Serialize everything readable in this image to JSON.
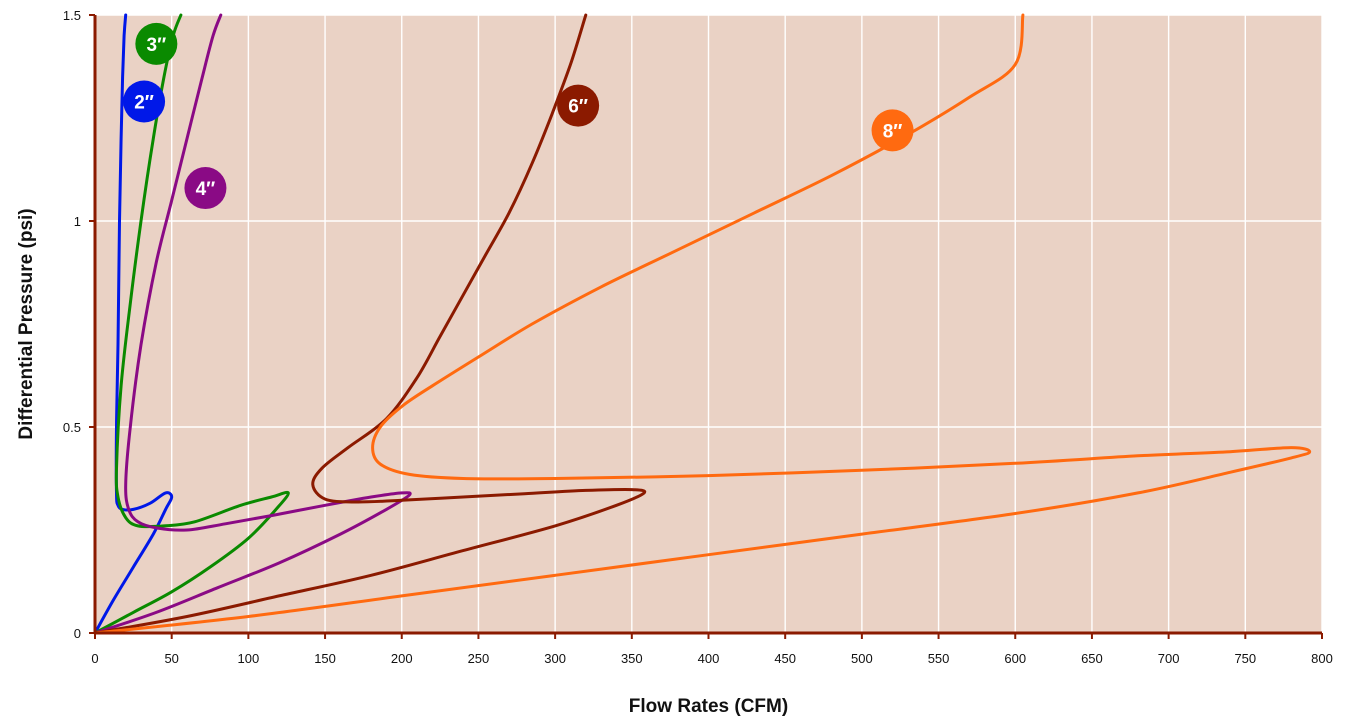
{
  "chart_data": {
    "type": "line",
    "title": "",
    "xlabel": "Flow Rates (CFM)",
    "ylabel": "Differential Pressure (psi)",
    "xlim": [
      0,
      800
    ],
    "ylim": [
      0,
      1.5
    ],
    "x_ticks": [
      "0",
      "50",
      "100",
      "150",
      "200",
      "250",
      "300",
      "350",
      "400",
      "450",
      "500",
      "550",
      "600",
      "650",
      "700",
      "750",
      "800"
    ],
    "y_ticks": [
      "0",
      "0.5",
      "1",
      "1.5"
    ],
    "x_tick_values": [
      0,
      50,
      100,
      150,
      200,
      250,
      300,
      350,
      400,
      450,
      500,
      550,
      600,
      650,
      700,
      750,
      800
    ],
    "y_tick_values": [
      0,
      0.5,
      1,
      1.5
    ],
    "grid": true,
    "background": "#ead2c5",
    "axis_color": "#8b1a00",
    "series": [
      {
        "name": "2″",
        "color": "#0018e8",
        "label_pos": [
          32,
          1.29
        ],
        "points": [
          [
            0,
            0
          ],
          [
            12,
            0.08
          ],
          [
            25,
            0.16
          ],
          [
            38,
            0.24
          ],
          [
            46,
            0.3
          ],
          [
            50,
            0.33
          ],
          [
            46,
            0.34
          ],
          [
            36,
            0.315
          ],
          [
            25,
            0.3
          ],
          [
            18,
            0.3
          ],
          [
            15,
            0.31
          ],
          [
            14,
            0.34
          ],
          [
            14,
            0.5
          ],
          [
            15,
            0.7
          ],
          [
            16,
            1.0
          ],
          [
            17,
            1.2
          ],
          [
            18,
            1.35
          ],
          [
            19,
            1.45
          ],
          [
            20,
            1.5
          ]
        ]
      },
      {
        "name": "3″",
        "color": "#0a8a00",
        "label_pos": [
          40,
          1.43
        ],
        "points": [
          [
            0,
            0
          ],
          [
            25,
            0.05
          ],
          [
            50,
            0.1
          ],
          [
            75,
            0.16
          ],
          [
            100,
            0.23
          ],
          [
            118,
            0.3
          ],
          [
            126,
            0.34
          ],
          [
            115,
            0.33
          ],
          [
            95,
            0.31
          ],
          [
            65,
            0.27
          ],
          [
            45,
            0.26
          ],
          [
            28,
            0.26
          ],
          [
            20,
            0.28
          ],
          [
            15,
            0.33
          ],
          [
            14,
            0.4
          ],
          [
            17,
            0.6
          ],
          [
            23,
            0.8
          ],
          [
            30,
            1.0
          ],
          [
            38,
            1.2
          ],
          [
            45,
            1.35
          ],
          [
            51,
            1.45
          ],
          [
            56,
            1.5
          ]
        ]
      },
      {
        "name": "4″",
        "color": "#8a0a85",
        "label_pos": [
          72,
          1.08
        ],
        "points": [
          [
            0,
            0
          ],
          [
            40,
            0.05
          ],
          [
            80,
            0.11
          ],
          [
            120,
            0.17
          ],
          [
            160,
            0.24
          ],
          [
            190,
            0.3
          ],
          [
            205,
            0.335
          ],
          [
            200,
            0.34
          ],
          [
            180,
            0.33
          ],
          [
            150,
            0.31
          ],
          [
            115,
            0.285
          ],
          [
            85,
            0.265
          ],
          [
            60,
            0.25
          ],
          [
            40,
            0.255
          ],
          [
            28,
            0.27
          ],
          [
            22,
            0.3
          ],
          [
            20,
            0.36
          ],
          [
            23,
            0.5
          ],
          [
            30,
            0.7
          ],
          [
            40,
            0.9
          ],
          [
            50,
            1.05
          ],
          [
            60,
            1.2
          ],
          [
            70,
            1.35
          ],
          [
            77,
            1.45
          ],
          [
            82,
            1.5
          ]
        ]
      },
      {
        "name": "6″",
        "color": "#8b1a00",
        "label_pos": [
          315,
          1.28
        ],
        "points": [
          [
            0,
            0
          ],
          [
            60,
            0.04
          ],
          [
            120,
            0.09
          ],
          [
            180,
            0.14
          ],
          [
            240,
            0.2
          ],
          [
            300,
            0.26
          ],
          [
            340,
            0.31
          ],
          [
            358,
            0.34
          ],
          [
            350,
            0.348
          ],
          [
            320,
            0.346
          ],
          [
            280,
            0.338
          ],
          [
            240,
            0.33
          ],
          [
            200,
            0.322
          ],
          [
            170,
            0.318
          ],
          [
            150,
            0.325
          ],
          [
            142,
            0.36
          ],
          [
            148,
            0.4
          ],
          [
            165,
            0.45
          ],
          [
            190,
            0.52
          ],
          [
            210,
            0.62
          ],
          [
            225,
            0.72
          ],
          [
            240,
            0.82
          ],
          [
            255,
            0.92
          ],
          [
            270,
            1.02
          ],
          [
            285,
            1.14
          ],
          [
            298,
            1.26
          ],
          [
            310,
            1.38
          ],
          [
            320,
            1.5
          ]
        ]
      },
      {
        "name": "8″",
        "color": "#ff6a10",
        "label_pos": [
          520,
          1.22
        ],
        "points": [
          [
            0,
            0
          ],
          [
            100,
            0.04
          ],
          [
            200,
            0.09
          ],
          [
            300,
            0.14
          ],
          [
            400,
            0.19
          ],
          [
            500,
            0.24
          ],
          [
            600,
            0.29
          ],
          [
            680,
            0.34
          ],
          [
            740,
            0.39
          ],
          [
            780,
            0.425
          ],
          [
            792,
            0.44
          ],
          [
            780,
            0.45
          ],
          [
            740,
            0.44
          ],
          [
            680,
            0.43
          ],
          [
            600,
            0.412
          ],
          [
            500,
            0.395
          ],
          [
            400,
            0.382
          ],
          [
            300,
            0.375
          ],
          [
            240,
            0.375
          ],
          [
            205,
            0.385
          ],
          [
            186,
            0.41
          ],
          [
            181,
            0.45
          ],
          [
            186,
            0.5
          ],
          [
            200,
            0.55
          ],
          [
            220,
            0.6
          ],
          [
            250,
            0.67
          ],
          [
            285,
            0.75
          ],
          [
            330,
            0.84
          ],
          [
            380,
            0.93
          ],
          [
            430,
            1.02
          ],
          [
            480,
            1.11
          ],
          [
            530,
            1.21
          ],
          [
            570,
            1.3
          ],
          [
            600,
            1.38
          ],
          [
            605,
            1.5
          ]
        ]
      }
    ]
  }
}
